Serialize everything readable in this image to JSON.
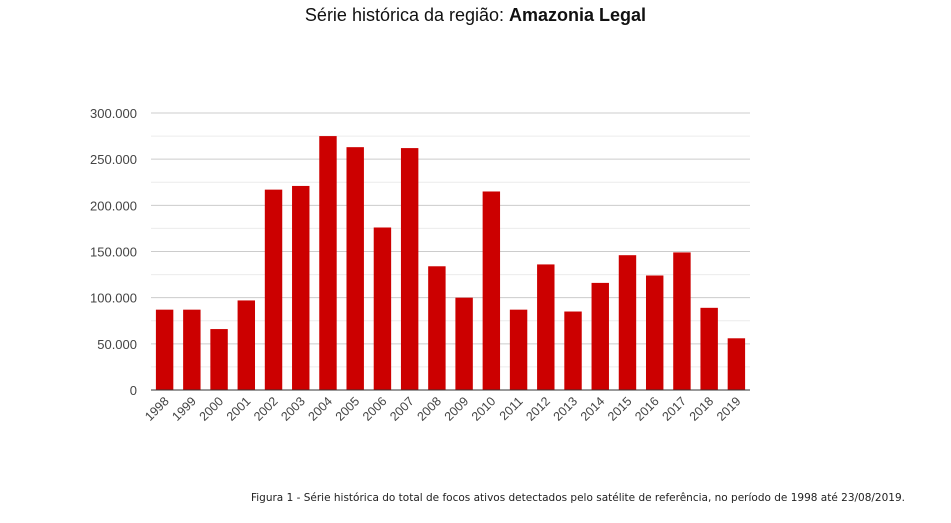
{
  "title": {
    "prefix": "Série histórica da região: ",
    "region": "Amazonia Legal"
  },
  "caption": "Figura 1 - Série histórica do total de focos ativos detectados pelo satélite de referência, no período de 1998 até 23/08/2019.",
  "colors": {
    "bar": "#cc0000",
    "grid": "#cccccc",
    "minor_grid": "#ececec",
    "axis": "#333333",
    "tick_text": "#444444"
  },
  "chart_data": {
    "type": "bar",
    "categories": [
      "1998",
      "1999",
      "2000",
      "2001",
      "2002",
      "2003",
      "2004",
      "2005",
      "2006",
      "2007",
      "2008",
      "2009",
      "2010",
      "2011",
      "2012",
      "2013",
      "2014",
      "2015",
      "2016",
      "2017",
      "2018",
      "2019"
    ],
    "values": [
      87000,
      87000,
      66000,
      97000,
      217000,
      221000,
      275000,
      263000,
      176000,
      262000,
      134000,
      100000,
      215000,
      87000,
      136000,
      85000,
      116000,
      146000,
      124000,
      149000,
      89000,
      56000
    ],
    "ylim": [
      0,
      300000
    ],
    "yticks": [
      0,
      50000,
      100000,
      150000,
      200000,
      250000,
      300000
    ],
    "ytick_labels": [
      "0",
      "50.000",
      "100.000",
      "150.000",
      "200.000",
      "250.000",
      "300.000"
    ],
    "xlabel": "",
    "ylabel": "",
    "grid": true,
    "legend": "none"
  }
}
